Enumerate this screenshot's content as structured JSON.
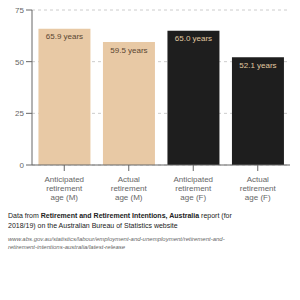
{
  "chart_data": {
    "type": "bar",
    "categories": [
      "Anticipated\nretirement\nage (M)",
      "Actual\nretirement\nage (M)",
      "Anticipated\nretirement\nage (F)",
      "Actual\nretirement\nage (F)"
    ],
    "values": [
      65.9,
      59.5,
      65.0,
      52.1
    ],
    "value_labels": [
      "65.9 years",
      "59.5 years",
      "65.0 years",
      "52.1 years"
    ],
    "data_labels": true,
    "colors": [
      "#e8c9a5",
      "#e8c9a5",
      "#1e1e1e",
      "#1e1e1e"
    ],
    "ylim": [
      0,
      75
    ],
    "yticks": [
      0,
      25,
      50,
      75
    ],
    "grid": true,
    "annotations": [
      "Data from ",
      "Retirement and Retirement Intentions, Australia",
      " report (for",
      "2018/19) on the Australian Bureau of Statistics website",
      "www.abs.gov.au/statistics/labour/employment-and-unemployment/retirement-and-\nretirement-intentions-australia/latest-release"
    ]
  }
}
